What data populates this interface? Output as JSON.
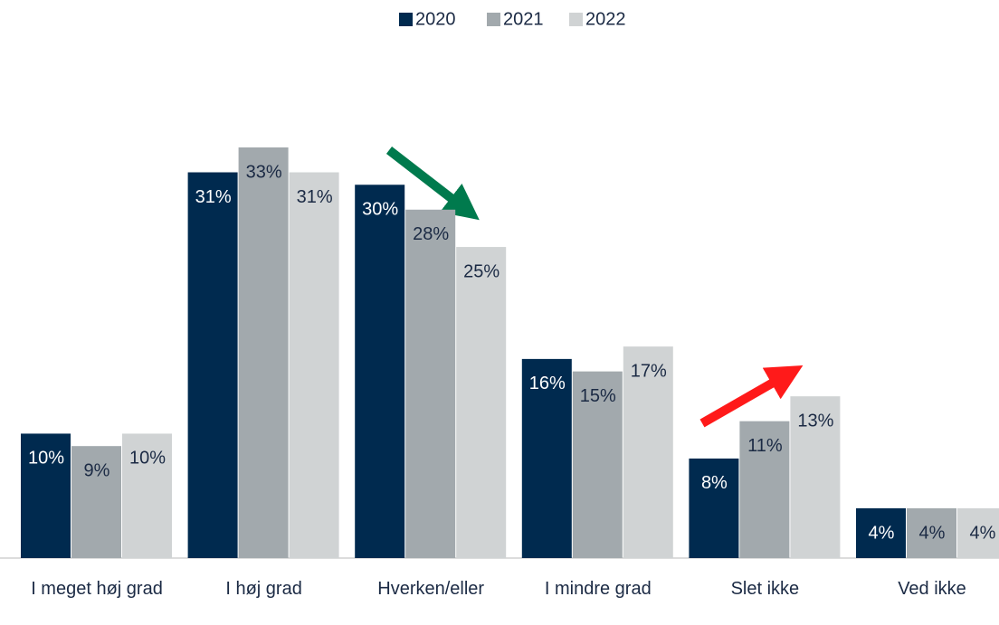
{
  "chart_data": {
    "type": "bar",
    "categories": [
      "I meget høj grad",
      "I høj grad",
      "Hverken/eller",
      "I mindre grad",
      "Slet ikke",
      "Ved ikke"
    ],
    "series": [
      {
        "name": "2020",
        "color": "#002a4f",
        "values": [
          10,
          31,
          30,
          16,
          8,
          4
        ],
        "value_labels": [
          "10%",
          "31%",
          "30%",
          "16%",
          "8%",
          "4%"
        ]
      },
      {
        "name": "2021",
        "color": "#a2a9ad",
        "values": [
          9,
          33,
          28,
          15,
          11,
          4
        ],
        "value_labels": [
          "9%",
          "33%",
          "28%",
          "15%",
          "11%",
          "4%"
        ]
      },
      {
        "name": "2022",
        "color": "#d0d3d4",
        "values": [
          10,
          31,
          25,
          17,
          13,
          4
        ],
        "value_labels": [
          "10%",
          "31%",
          "25%",
          "17%",
          "13%",
          "4%"
        ]
      }
    ],
    "legend": "top"
  }
}
